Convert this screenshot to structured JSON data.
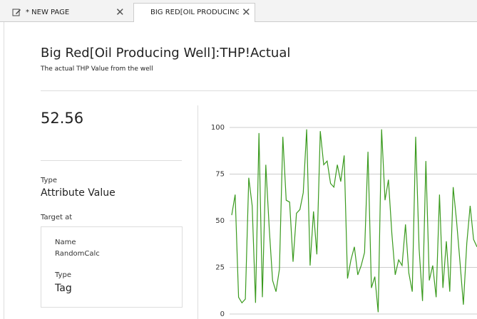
{
  "tabs": [
    {
      "label": "* NEW PAGE"
    },
    {
      "label": "BIG RED[OIL PRODUCING"
    }
  ],
  "header": {
    "title": "Big Red[Oil Producing Well]:THP!Actual",
    "subtitle": "The actual THP Value from the well"
  },
  "current_value": "52.56",
  "details": {
    "type_label": "Type",
    "type_value": "Attribute Value",
    "target_label": "Target at",
    "target": {
      "name_label": "Name",
      "name_value": "RandomCalc",
      "type_label": "Type",
      "type_value": "Tag"
    }
  },
  "chart_data": {
    "type": "line",
    "color": "#3a9a1e",
    "ylim": [
      0,
      100
    ],
    "yticks": [
      0,
      25,
      50,
      75,
      100
    ],
    "grid": true,
    "values": [
      53,
      64,
      9,
      6,
      8,
      73,
      58,
      6,
      97,
      9,
      80,
      46,
      18,
      12,
      24,
      95,
      61,
      60,
      28,
      54,
      56,
      65,
      99,
      26,
      55,
      32,
      98,
      80,
      82,
      70,
      68,
      80,
      71,
      85,
      19,
      29,
      36,
      21,
      26,
      33,
      87,
      14,
      20,
      1,
      99,
      61,
      72,
      43,
      21,
      29,
      26,
      48,
      22,
      12,
      95,
      35,
      7,
      82,
      18,
      26,
      9,
      64,
      14,
      39,
      12,
      68,
      50,
      28,
      5,
      38,
      58,
      40,
      36
    ]
  }
}
